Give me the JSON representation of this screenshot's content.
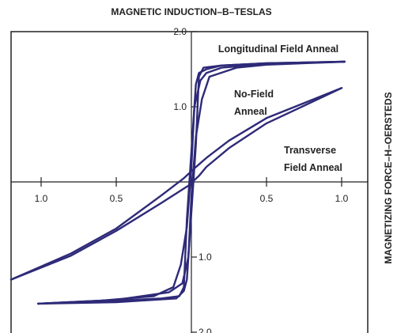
{
  "chart_data": {
    "type": "line",
    "title": "MAGNETIC INDUCTION–B–TESLAS",
    "ylabel": "MAGNETIC INDUCTION–B–TESLAS",
    "xlabel": "MAGNETIZING FORCE–H–OERSTEDS",
    "xlim": [
      -1.2,
      1.1
    ],
    "ylim": [
      -2.1,
      2.1
    ],
    "grid": false,
    "x_ticks": [
      {
        "value": -1.0,
        "label": "1.0"
      },
      {
        "value": -0.5,
        "label": "0.5"
      },
      {
        "value": 0.5,
        "label": "0.5"
      },
      {
        "value": 1.0,
        "label": "1.0"
      }
    ],
    "y_ticks": [
      {
        "value": 2.0,
        "label": "2.0"
      },
      {
        "value": 1.0,
        "label": "1.0"
      },
      {
        "value": -1.0,
        "label": "1.0"
      },
      {
        "value": -2.0,
        "label": "2.0"
      }
    ],
    "annotations": [
      {
        "lines": [
          "Longitudinal Field Anneal"
        ]
      },
      {
        "lines": [
          "No-Field",
          "Anneal"
        ]
      },
      {
        "lines": [
          "Transverse",
          "Field Anneal"
        ]
      }
    ],
    "line_color": "#2e2a78",
    "series": [
      {
        "upper": [
          [
            1.02,
            1.6
          ],
          [
            0.5,
            1.58
          ],
          [
            0.2,
            1.55
          ],
          [
            0.08,
            1.52
          ],
          [
            0.05,
            1.4
          ],
          [
            0.03,
            0.5
          ],
          [
            0.0,
            -0.4
          ],
          [
            -0.03,
            -1.3
          ],
          [
            -0.05,
            -1.45
          ],
          [
            -0.1,
            -1.55
          ],
          [
            -0.5,
            -1.6
          ],
          [
            -1.02,
            -1.62
          ]
        ],
        "lower": [
          [
            1.02,
            1.6
          ],
          [
            0.5,
            1.58
          ],
          [
            0.2,
            1.55
          ],
          [
            0.1,
            1.5
          ],
          [
            0.05,
            1.45
          ],
          [
            0.03,
            1.3
          ],
          [
            0.0,
            0.4
          ],
          [
            -0.03,
            -0.5
          ],
          [
            -0.05,
            -1.4
          ],
          [
            -0.08,
            -1.52
          ],
          [
            -0.2,
            -1.55
          ],
          [
            -0.5,
            -1.58
          ],
          [
            -1.02,
            -1.62
          ]
        ]
      },
      {
        "upper": [
          [
            1.02,
            1.6
          ],
          [
            0.5,
            1.57
          ],
          [
            0.2,
            1.52
          ],
          [
            0.1,
            1.45
          ],
          [
            0.06,
            1.35
          ],
          [
            0.02,
            1.0
          ],
          [
            0.0,
            0.2
          ],
          [
            -0.03,
            -0.6
          ],
          [
            -0.07,
            -1.1
          ],
          [
            -0.12,
            -1.4
          ],
          [
            -0.25,
            -1.52
          ],
          [
            -0.6,
            -1.58
          ],
          [
            -1.02,
            -1.62
          ]
        ],
        "lower": [
          [
            1.02,
            1.6
          ],
          [
            0.5,
            1.56
          ],
          [
            0.3,
            1.52
          ],
          [
            0.12,
            1.4
          ],
          [
            0.07,
            1.1
          ],
          [
            0.03,
            0.6
          ],
          [
            0.0,
            -0.2
          ],
          [
            -0.02,
            -1.0
          ],
          [
            -0.06,
            -1.35
          ],
          [
            -0.15,
            -1.47
          ],
          [
            -0.5,
            -1.57
          ],
          [
            -1.02,
            -1.62
          ]
        ]
      },
      {
        "upper": [
          [
            1.0,
            1.25
          ],
          [
            0.5,
            0.85
          ],
          [
            0.25,
            0.55
          ],
          [
            0.1,
            0.32
          ],
          [
            0.02,
            0.18
          ],
          [
            -0.05,
            0.05
          ],
          [
            -0.2,
            -0.18
          ],
          [
            -0.5,
            -0.62
          ],
          [
            -0.8,
            -0.95
          ],
          [
            -1.2,
            -1.3
          ]
        ],
        "lower": [
          [
            1.0,
            1.25
          ],
          [
            0.5,
            0.78
          ],
          [
            0.25,
            0.45
          ],
          [
            0.1,
            0.2
          ],
          [
            0.05,
            0.08
          ],
          [
            -0.02,
            -0.05
          ],
          [
            -0.2,
            -0.28
          ],
          [
            -0.5,
            -0.65
          ],
          [
            -0.8,
            -0.98
          ],
          [
            -1.2,
            -1.3
          ]
        ]
      }
    ]
  }
}
